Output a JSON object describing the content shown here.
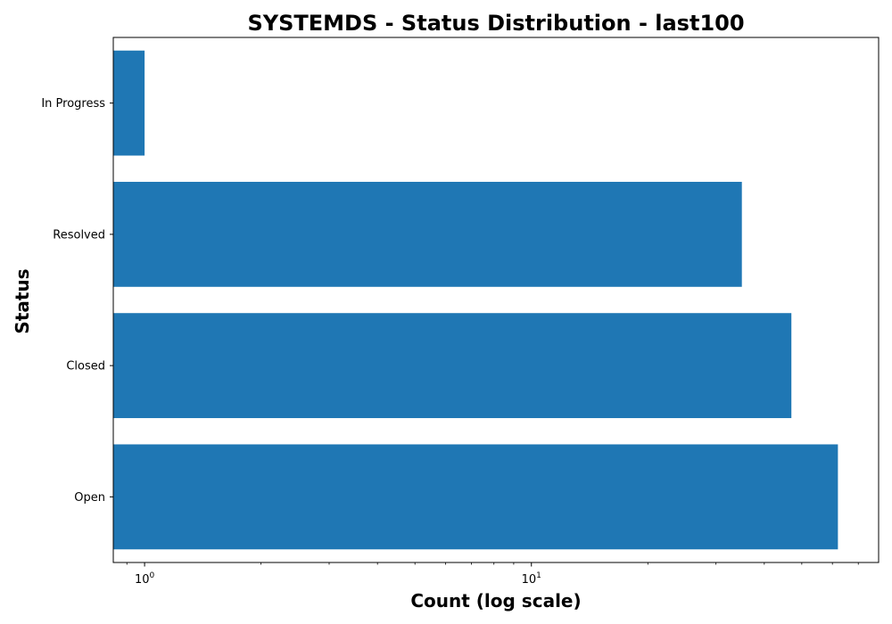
{
  "chart_data": {
    "type": "bar",
    "orientation": "horizontal",
    "title": "SYSTEMDS - Status Distribution - last100",
    "xlabel": "Count (log scale)",
    "ylabel": "Status",
    "x_scale": "log",
    "xlim": [
      0.83,
      79
    ],
    "x_major_ticks": [
      {
        "value": 1,
        "base": "10",
        "exp": "0"
      },
      {
        "value": 10,
        "base": "10",
        "exp": "1"
      }
    ],
    "categories": [
      "Open",
      "Closed",
      "Resolved",
      "In Progress"
    ],
    "values": [
      62,
      47,
      35,
      1
    ],
    "bar_color": "#1f77b4",
    "grid": false,
    "legend": "none"
  }
}
